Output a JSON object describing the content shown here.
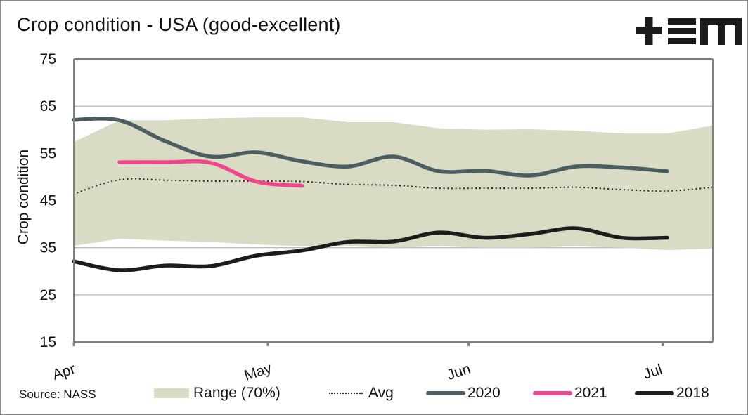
{
  "header": {
    "title": "Crop condition - USA (good-excellent)",
    "logo_text": "+EM"
  },
  "footer": {
    "source": "Source: NASS"
  },
  "colors": {
    "range": "#d9dbc5",
    "avg": "#222222",
    "s2020": "#4b5e61",
    "s2021": "#f0468e",
    "s2018": "#1c1c1c",
    "grid": "#bdbdbd",
    "axis": "#808080"
  },
  "chart_data": {
    "type": "line",
    "title": "Crop condition - USA (good-excellent)",
    "xlabel": "",
    "ylabel": "Crop condition",
    "ylim": [
      15,
      75
    ],
    "yticks": [
      15,
      25,
      35,
      45,
      55,
      65,
      75
    ],
    "grid": true,
    "legend_position": "bottom",
    "week_count": 15,
    "x_tick_labels": [
      {
        "label": "Apr",
        "week": 0
      },
      {
        "label": "May",
        "week": 4.25
      },
      {
        "label": "Jun",
        "week": 8.65
      },
      {
        "label": "Jul",
        "week": 12.9
      }
    ],
    "range": {
      "name": "Range (70%)",
      "upper": [
        57.4,
        62.0,
        62.0,
        62.4,
        62.6,
        62.6,
        61.6,
        61.6,
        60.3,
        60.0,
        60.1,
        59.8,
        59.2,
        59.2,
        60.9
      ],
      "lower": [
        35.4,
        36.9,
        36.5,
        36.2,
        35.7,
        35.3,
        35.3,
        35.0,
        35.3,
        35.0,
        35.0,
        35.3,
        35.0,
        34.5,
        34.8
      ]
    },
    "series": [
      {
        "name": "Avg",
        "style": "dotted",
        "values": [
          46.4,
          49.4,
          49.3,
          49.1,
          49.1,
          49.0,
          48.4,
          48.2,
          47.6,
          47.6,
          47.6,
          47.8,
          47.3,
          47.0,
          47.8
        ]
      },
      {
        "name": "2020",
        "style": "solid",
        "values": [
          62.1,
          62.0,
          57.6,
          54.3,
          55.2,
          53.3,
          52.2,
          54.3,
          51.2,
          51.3,
          50.3,
          52.2,
          52.0,
          51.2,
          null
        ]
      },
      {
        "name": "2021",
        "style": "solid",
        "values": [
          null,
          53.1,
          53.1,
          53.0,
          49.0,
          48.1,
          null,
          null,
          null,
          null,
          null,
          null,
          null,
          null,
          null
        ]
      },
      {
        "name": "2018",
        "style": "solid",
        "values": [
          32.1,
          30.2,
          31.2,
          31.1,
          33.3,
          34.4,
          36.2,
          36.3,
          38.2,
          37.1,
          37.9,
          39.1,
          37.1,
          37.1,
          null
        ]
      }
    ]
  },
  "legend": {
    "items": [
      {
        "label": "Range (70%)"
      },
      {
        "label": "Avg"
      },
      {
        "label": "2020"
      },
      {
        "label": "2021"
      },
      {
        "label": "2018"
      }
    ]
  }
}
